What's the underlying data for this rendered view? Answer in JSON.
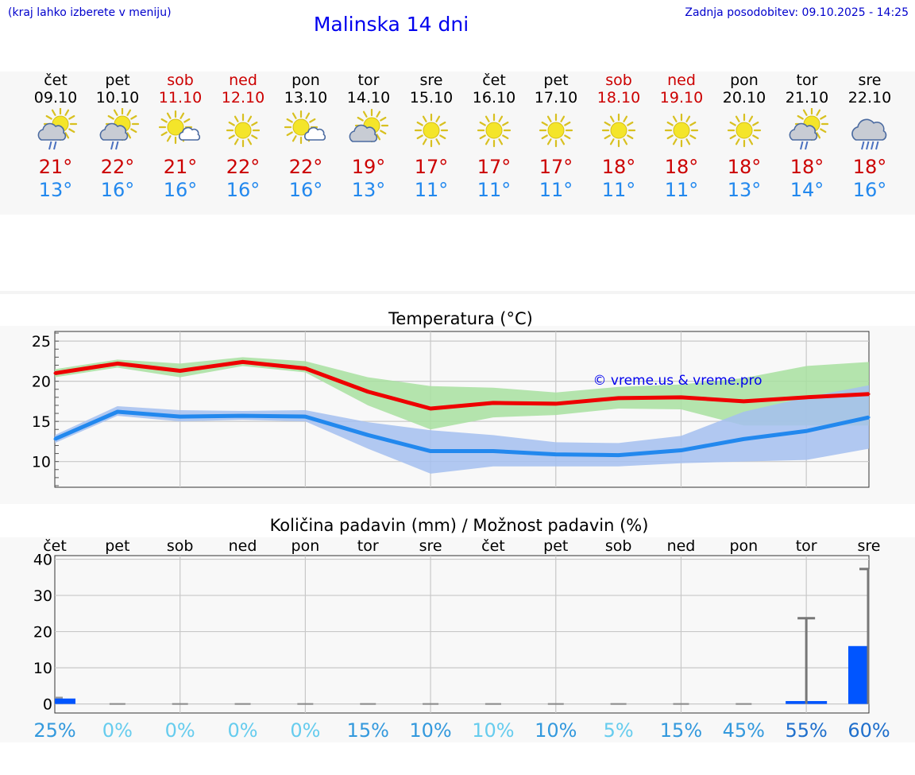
{
  "header": {
    "menu_hint": "(kraj lahko izberete v meniju)",
    "title": "Malinska 14 dni",
    "updated": "Zadnja posodobitev: 09.10.2025 - 14:25"
  },
  "colors": {
    "max": "#cc0000",
    "min": "#2288ee",
    "weekend": "#cc0000",
    "weekday": "#000000"
  },
  "days": [
    {
      "name": "čet",
      "date": "09.10",
      "icon": "sun-cloud-rain-icon",
      "tmax": "21°",
      "tmin": "13°",
      "weekend": false
    },
    {
      "name": "pet",
      "date": "10.10",
      "icon": "sun-cloud-rain-icon",
      "tmax": "22°",
      "tmin": "16°",
      "weekend": false
    },
    {
      "name": "sob",
      "date": "11.10",
      "icon": "sun-small-cloud-icon",
      "tmax": "21°",
      "tmin": "16°",
      "weekend": true
    },
    {
      "name": "ned",
      "date": "12.10",
      "icon": "sun-icon",
      "tmax": "22°",
      "tmin": "16°",
      "weekend": true
    },
    {
      "name": "pon",
      "date": "13.10",
      "icon": "sun-small-cloud-icon",
      "tmax": "22°",
      "tmin": "16°",
      "weekend": false
    },
    {
      "name": "tor",
      "date": "14.10",
      "icon": "sun-cloud-icon",
      "tmax": "19°",
      "tmin": "13°",
      "weekend": false
    },
    {
      "name": "sre",
      "date": "15.10",
      "icon": "sun-icon",
      "tmax": "17°",
      "tmin": "11°",
      "weekend": false
    },
    {
      "name": "čet",
      "date": "16.10",
      "icon": "sun-icon",
      "tmax": "17°",
      "tmin": "11°",
      "weekend": false
    },
    {
      "name": "pet",
      "date": "17.10",
      "icon": "sun-icon",
      "tmax": "17°",
      "tmin": "11°",
      "weekend": false
    },
    {
      "name": "sob",
      "date": "18.10",
      "icon": "sun-icon",
      "tmax": "18°",
      "tmin": "11°",
      "weekend": true
    },
    {
      "name": "ned",
      "date": "19.10",
      "icon": "sun-icon",
      "tmax": "18°",
      "tmin": "11°",
      "weekend": true
    },
    {
      "name": "pon",
      "date": "20.10",
      "icon": "sun-icon",
      "tmax": "18°",
      "tmin": "13°",
      "weekend": false
    },
    {
      "name": "tor",
      "date": "21.10",
      "icon": "sun-cloud-rain-icon",
      "tmax": "18°",
      "tmin": "14°",
      "weekend": false
    },
    {
      "name": "sre",
      "date": "22.10",
      "icon": "cloud-heavy-rain-icon",
      "tmax": "18°",
      "tmin": "16°",
      "weekend": false
    }
  ],
  "chart_data": [
    {
      "type": "line",
      "title": "Temperatura (°C)",
      "watermark": "© vreme.us & vreme.pro",
      "x": [
        0,
        1,
        2,
        3,
        4,
        5,
        6,
        7,
        8,
        9,
        10,
        11,
        12,
        13
      ],
      "ylim": [
        6.8,
        26.2
      ],
      "yticks": [
        "10",
        "15",
        "20",
        "25"
      ],
      "ytick_values": [
        10,
        15,
        20,
        25
      ],
      "series": [
        {
          "name": "max",
          "color": "#ee0000",
          "values": [
            21.0,
            22.2,
            21.3,
            22.4,
            21.6,
            18.7,
            16.6,
            17.3,
            17.2,
            17.9,
            18.0,
            17.5,
            18.0,
            18.4
          ]
        },
        {
          "name": "min",
          "color": "#2288ee",
          "values": [
            12.8,
            16.2,
            15.6,
            15.7,
            15.6,
            13.3,
            11.3,
            11.3,
            10.9,
            10.8,
            11.4,
            12.8,
            13.8,
            15.5
          ]
        }
      ],
      "bands": [
        {
          "name": "max-range",
          "color": "#a8e0a0",
          "low": [
            20.5,
            21.7,
            20.5,
            21.9,
            21.1,
            17.0,
            14.0,
            15.5,
            15.8,
            16.6,
            16.5,
            14.5,
            14.5,
            14.5
          ],
          "high": [
            21.5,
            22.7,
            22.2,
            23.0,
            22.5,
            20.5,
            19.4,
            19.2,
            18.6,
            19.3,
            19.6,
            20.4,
            21.9,
            22.4
          ]
        },
        {
          "name": "min-range",
          "color": "#a4bff0",
          "low": [
            12.3,
            15.7,
            15.0,
            15.2,
            15.0,
            11.6,
            8.5,
            9.4,
            9.4,
            9.4,
            9.8,
            10.0,
            10.2,
            11.6
          ],
          "high": [
            13.3,
            16.9,
            16.4,
            16.3,
            16.4,
            14.9,
            13.9,
            13.3,
            12.4,
            12.3,
            13.2,
            16.2,
            18.0,
            19.5
          ]
        }
      ]
    },
    {
      "type": "bar",
      "title": "Količina padavin (mm) / Možnost padavin (%)",
      "categories": [
        "čet",
        "pet",
        "sob",
        "ned",
        "pon",
        "tor",
        "sre",
        "čet",
        "pet",
        "sob",
        "ned",
        "pon",
        "tor",
        "sre"
      ],
      "ylim": [
        -2.5,
        41
      ],
      "yticks": [
        "0",
        "10",
        "20",
        "30",
        "40"
      ],
      "ytick_values": [
        0,
        10,
        20,
        30,
        40
      ],
      "values": [
        1.5,
        0,
        0,
        0,
        0,
        0,
        0,
        0,
        0,
        0,
        0,
        0,
        0.8,
        16
      ],
      "gray_values": [
        2.0,
        0,
        0,
        0,
        0,
        0,
        0,
        0,
        0,
        0,
        0,
        0,
        0,
        0
      ],
      "error_high": [
        null,
        null,
        null,
        null,
        null,
        null,
        null,
        null,
        null,
        null,
        null,
        null,
        23.7,
        37.3
      ],
      "probability": [
        "25%",
        "0%",
        "0%",
        "0%",
        "0%",
        "15%",
        "10%",
        "10%",
        "10%",
        "5%",
        "15%",
        "45%",
        "55%",
        "60%"
      ],
      "probability_colors": [
        "#3399dd",
        "#66ccee",
        "#66ccee",
        "#66ccee",
        "#66ccee",
        "#3399dd",
        "#3399dd",
        "#66ccee",
        "#3399dd",
        "#66ccee",
        "#3399dd",
        "#3399dd",
        "#1f6fcc",
        "#1f6fcc"
      ]
    }
  ]
}
